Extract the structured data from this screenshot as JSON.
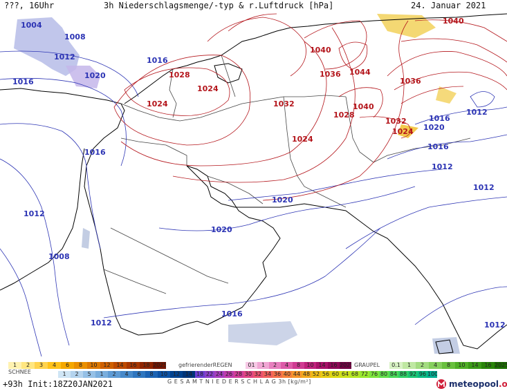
{
  "header": {
    "left": "???, 16Uhr",
    "title": "3h Niederschlagsmenge/-typ & r.Luftdruck [hPa]",
    "date": "24. Januar 2021"
  },
  "colors": {
    "high": "#b4161c",
    "low": "#2c34b4",
    "coast": "#000000",
    "border": "#444444",
    "brand": "#1b2f6b"
  },
  "isobar_labels_low": [
    {
      "text": "1004"
    },
    {
      "text": "1008"
    },
    {
      "text": "1012"
    },
    {
      "text": "1016"
    },
    {
      "text": "1020"
    },
    {
      "text": "1016"
    },
    {
      "text": "1016"
    },
    {
      "text": "1012"
    },
    {
      "text": "1008"
    },
    {
      "text": "1012"
    },
    {
      "text": "1016"
    },
    {
      "text": "1020"
    },
    {
      "text": "1020"
    },
    {
      "text": "1012"
    },
    {
      "text": "1016"
    },
    {
      "text": "1016"
    },
    {
      "text": "1012"
    },
    {
      "text": "1012"
    },
    {
      "text": "1020"
    },
    {
      "text": "1012"
    }
  ],
  "isobar_labels_high": [
    {
      "text": "1040"
    },
    {
      "text": "1040"
    },
    {
      "text": "1036"
    },
    {
      "text": "1044"
    },
    {
      "text": "1036"
    },
    {
      "text": "1028"
    },
    {
      "text": "1024"
    },
    {
      "text": "1024"
    },
    {
      "text": "1032"
    },
    {
      "text": "1040"
    },
    {
      "text": "1028"
    },
    {
      "text": "1032"
    },
    {
      "text": "1024"
    },
    {
      "text": "1024"
    }
  ],
  "legend": {
    "snow_label": "SCHNEE",
    "snow_values": [
      "1",
      "2",
      "3",
      "4",
      "6",
      "8",
      "10",
      "12",
      "14",
      "16",
      "18",
      "2025+"
    ],
    "fzrain_label": "gefrierenderREGEN",
    "fzrain_values": [
      "01",
      "1",
      "2",
      "4",
      "8",
      "10",
      "14",
      "16",
      "2025+"
    ],
    "graupel_label": "GRAUPEL",
    "graupel_values": [
      "0.1",
      "1",
      "2",
      "4",
      "8",
      "10",
      "14",
      "16",
      "2025+"
    ],
    "snow2_values": [
      "1",
      "2",
      "5",
      "1",
      "2",
      "4",
      "6",
      "8",
      "10",
      "12",
      "14"
    ],
    "total_values": [
      "18",
      "22",
      "24",
      "26",
      "28",
      "30",
      "32",
      "34",
      "36",
      "40",
      "44",
      "48",
      "52",
      "56",
      "60",
      "64",
      "68",
      "72",
      "76",
      "80",
      "84",
      "88",
      "92",
      "96",
      "100"
    ],
    "total_label": "G E S A M T N I E D E R S C H L A G   3h   [kg/m²]"
  },
  "footer": {
    "run": "+93h  Init:18Z20JAN2021",
    "brand": "meteopool",
    "brand_suffix": ".org"
  }
}
